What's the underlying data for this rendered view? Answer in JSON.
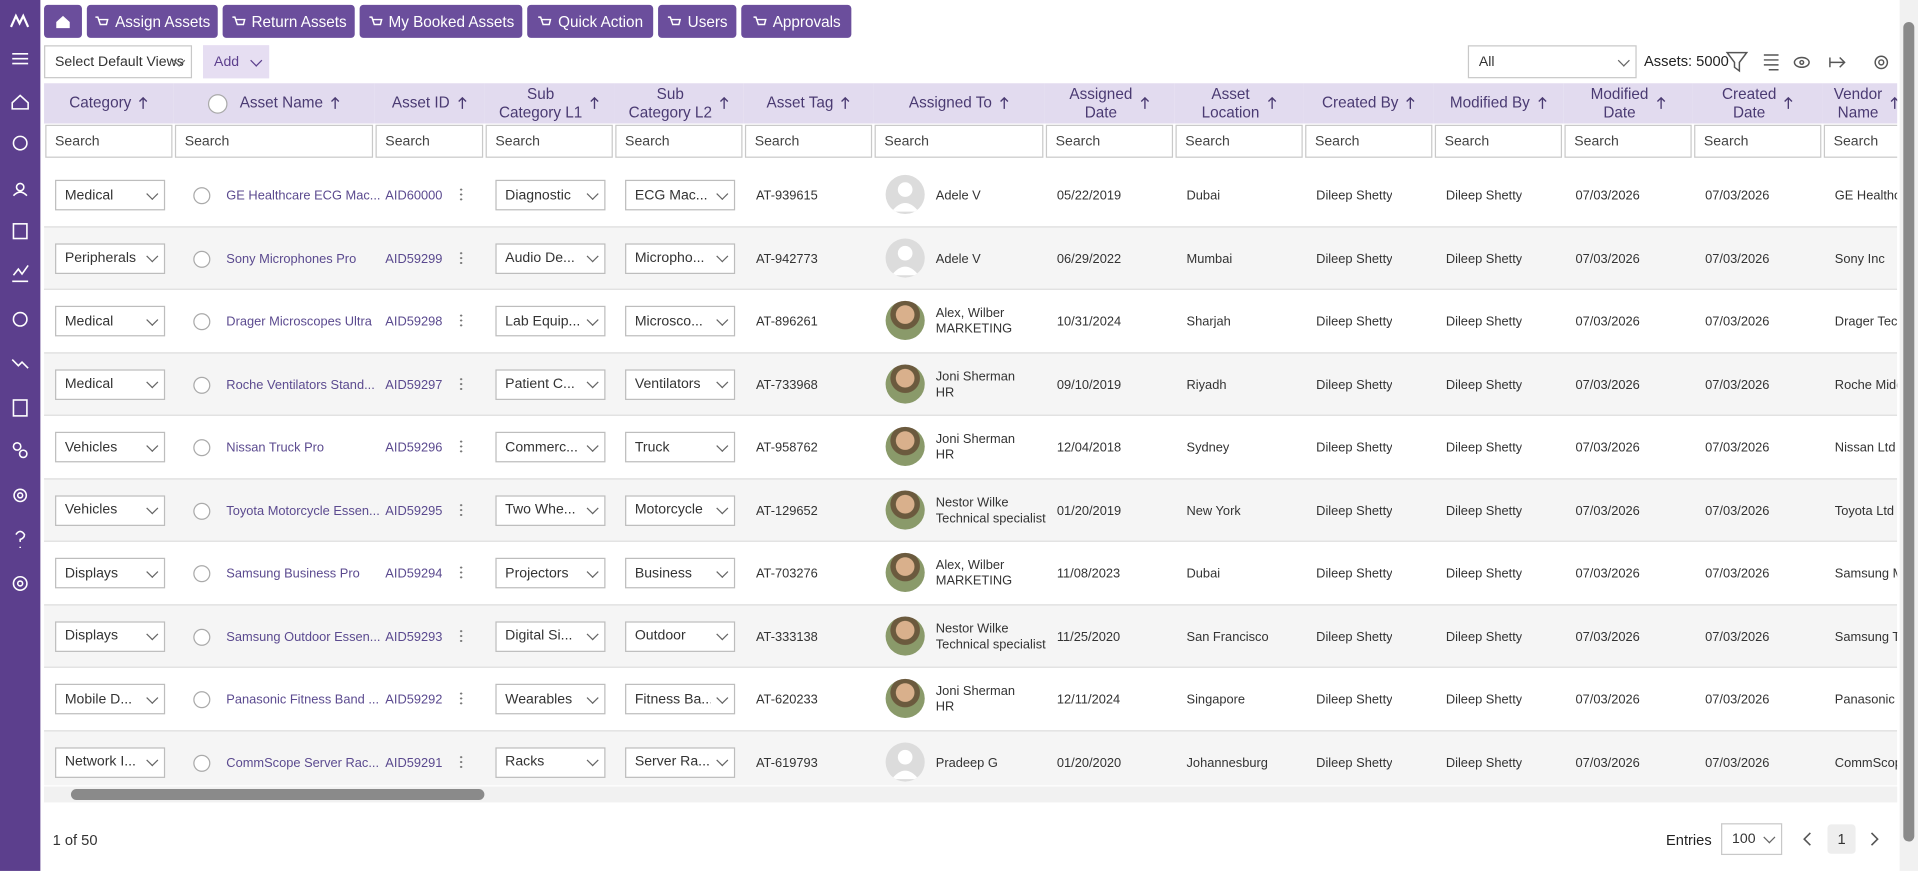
{
  "nav": {
    "buttons": [
      "Assign Assets",
      "Return Assets",
      "My Booked Assets",
      "Quick Action",
      "Users",
      "Approvals"
    ]
  },
  "toolbar": {
    "views_select": "Select Default Views",
    "add_button": "Add",
    "filter_select": "All",
    "asset_count": "Assets: 5000"
  },
  "table": {
    "columns": [
      "Category",
      "Asset Name",
      "Asset ID",
      "Sub\nCategory L1",
      "Sub\nCategory L2",
      "Asset Tag",
      "Assigned To",
      "Assigned\nDate",
      "Asset\nLocation",
      "Created By",
      "Modified By",
      "Modified\nDate",
      "Created\nDate",
      "Vendor\nName"
    ],
    "search_placeholder": "Search",
    "rows": [
      {
        "category": "Medical",
        "name": "GE Healthcare ECG Mac...",
        "id": "AID60000",
        "sub_l1": "Diagnostic",
        "sub_l2": "ECG Mac...",
        "tag": "AT-939615",
        "assignee": "Adele V",
        "assigned_date": "05/22/2019",
        "location": "Dubai",
        "created_by": "Dileep Shetty",
        "modified_by": "Dileep Shetty",
        "modified_date": "07/03/2026",
        "created_date": "07/03/2026",
        "vendor": "GE Healthca"
      },
      {
        "category": "Peripherals",
        "name": "Sony Microphones Pro",
        "id": "AID59299",
        "sub_l1": "Audio De...",
        "sub_l2": "Micropho...",
        "tag": "AT-942773",
        "assignee": "Adele V",
        "assigned_date": "06/29/2022",
        "location": "Mumbai",
        "created_by": "Dileep Shetty",
        "modified_by": "Dileep Shetty",
        "modified_date": "07/03/2026",
        "created_date": "07/03/2026",
        "vendor": "Sony Inc"
      },
      {
        "category": "Medical",
        "name": "Drager Microscopes Ultra",
        "id": "AID59298",
        "sub_l1": "Lab Equip...",
        "sub_l2": "Microsco...",
        "tag": "AT-896261",
        "assignee": "Alex, Wilber",
        "role": "MARKETING",
        "assigned_date": "10/31/2024",
        "location": "Sharjah",
        "created_by": "Dileep Shetty",
        "modified_by": "Dileep Shetty",
        "modified_date": "07/03/2026",
        "created_date": "07/03/2026",
        "vendor": "Drager Tech"
      },
      {
        "category": "Medical",
        "name": "Roche Ventilators Stand...",
        "id": "AID59297",
        "sub_l1": "Patient C...",
        "sub_l2": "Ventilators",
        "tag": "AT-733968",
        "assignee": "Joni Sherman",
        "role": "HR",
        "assigned_date": "09/10/2019",
        "location": "Riyadh",
        "created_by": "Dileep Shetty",
        "modified_by": "Dileep Shetty",
        "modified_date": "07/03/2026",
        "created_date": "07/03/2026",
        "vendor": "Roche Midc"
      },
      {
        "category": "Vehicles",
        "name": "Nissan Truck Pro",
        "id": "AID59296",
        "sub_l1": "Commerc...",
        "sub_l2": "Truck",
        "tag": "AT-958762",
        "assignee": "Joni Sherman",
        "role": "HR",
        "assigned_date": "12/04/2018",
        "location": "Sydney",
        "created_by": "Dileep Shetty",
        "modified_by": "Dileep Shetty",
        "modified_date": "07/03/2026",
        "created_date": "07/03/2026",
        "vendor": "Nissan Ltd"
      },
      {
        "category": "Vehicles",
        "name": "Toyota Motorcycle Essen...",
        "id": "AID59295",
        "sub_l1": "Two Whe...",
        "sub_l2": "Motorcycle",
        "tag": "AT-129652",
        "assignee": "Nestor Wilke",
        "role": "Technical specialist",
        "assigned_date": "01/20/2019",
        "location": "New York",
        "created_by": "Dileep Shetty",
        "modified_by": "Dileep Shetty",
        "modified_date": "07/03/2026",
        "created_date": "07/03/2026",
        "vendor": "Toyota Ltd"
      },
      {
        "category": "Displays",
        "name": "Samsung Business Pro",
        "id": "AID59294",
        "sub_l1": "Projectors",
        "sub_l2": "Business",
        "tag": "AT-703276",
        "assignee": "Alex, Wilber",
        "role": "MARKETING",
        "assigned_date": "11/08/2023",
        "location": "Dubai",
        "created_by": "Dileep Shetty",
        "modified_by": "Dileep Shetty",
        "modified_date": "07/03/2026",
        "created_date": "07/03/2026",
        "vendor": "Samsung M"
      },
      {
        "category": "Displays",
        "name": "Samsung Outdoor Essen...",
        "id": "AID59293",
        "sub_l1": "Digital Si...",
        "sub_l2": "Outdoor",
        "tag": "AT-333138",
        "assignee": "Nestor Wilke",
        "role": "Technical specialist",
        "assigned_date": "11/25/2020",
        "location": "San Francisco",
        "created_by": "Dileep Shetty",
        "modified_by": "Dileep Shetty",
        "modified_date": "07/03/2026",
        "created_date": "07/03/2026",
        "vendor": "Samsung Tr"
      },
      {
        "category": "Mobile D...",
        "name": "Panasonic Fitness Band ...",
        "id": "AID59292",
        "sub_l1": "Wearables",
        "sub_l2": "Fitness Ba...",
        "tag": "AT-620233",
        "assignee": "Joni Sherman",
        "role": "HR",
        "assigned_date": "12/11/2024",
        "location": "Singapore",
        "created_by": "Dileep Shetty",
        "modified_by": "Dileep Shetty",
        "modified_date": "07/03/2026",
        "created_date": "07/03/2026",
        "vendor": "Panasonic L"
      },
      {
        "category": "Network I...",
        "name": "CommScope Server Rac...",
        "id": "AID59291",
        "sub_l1": "Racks",
        "sub_l2": "Server Ra...",
        "tag": "AT-619793",
        "assignee": "Pradeep G",
        "assigned_date": "01/20/2020",
        "location": "Johannesburg",
        "created_by": "Dileep Shetty",
        "modified_by": "Dileep Shetty",
        "modified_date": "07/03/2026",
        "created_date": "07/03/2026",
        "vendor": "CommScop"
      }
    ]
  },
  "footer": {
    "page_info": "1 of 50",
    "entries_label": "Entries",
    "entries_value": "100",
    "current_page": "1"
  }
}
